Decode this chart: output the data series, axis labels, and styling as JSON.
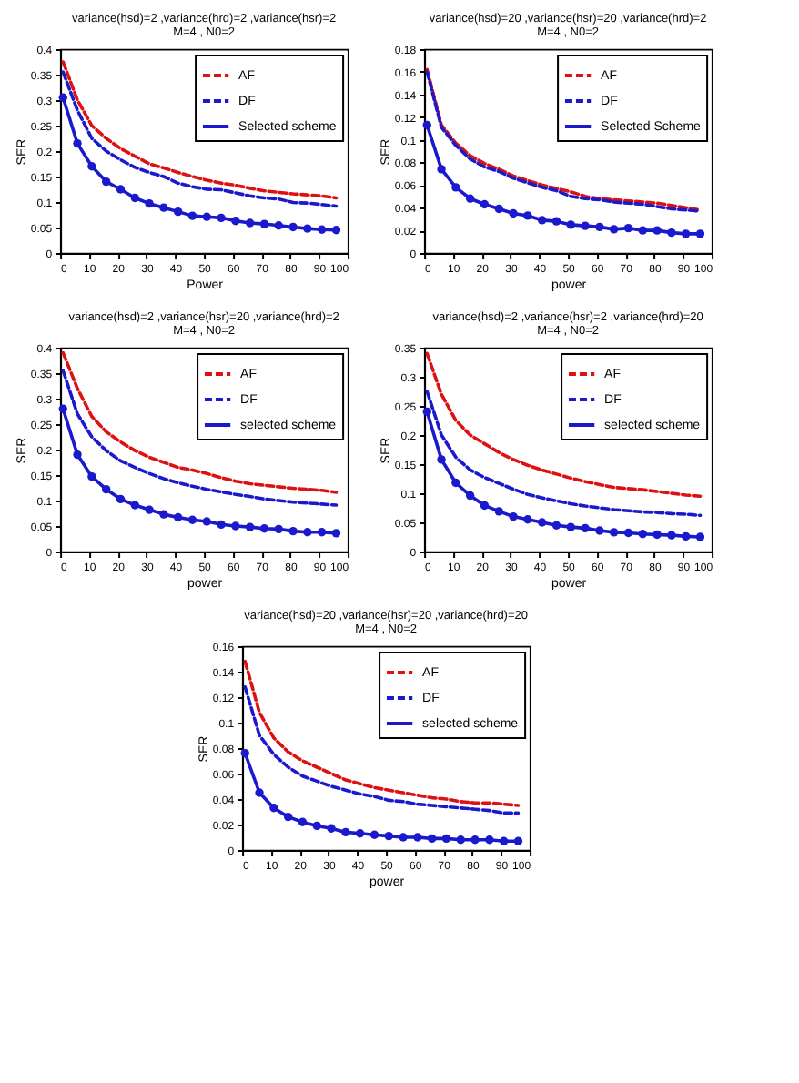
{
  "chart_data": [
    {
      "type": "line",
      "title": "variance(hsd)=2 ,variance(hrd)=2 ,variance(hsr)=2",
      "subtitle": "M=4 , N0=2",
      "xlabel": "Power",
      "ylabel": "SER",
      "x": [
        1,
        6,
        11,
        16,
        21,
        26,
        31,
        36,
        41,
        46,
        51,
        56,
        61,
        66,
        71,
        76,
        81,
        86,
        91,
        96
      ],
      "xlim": [
        0,
        100
      ],
      "xticks": [
        0,
        10,
        20,
        30,
        40,
        50,
        60,
        70,
        80,
        90,
        100
      ],
      "ylim": [
        0,
        0.4
      ],
      "yticks": [
        0,
        0.05,
        0.1,
        0.15,
        0.2,
        0.25,
        0.3,
        0.35,
        0.4
      ],
      "legend": "top right",
      "series": [
        {
          "name": "AF",
          "color": "#dd1111",
          "line_style": "dashed",
          "marker": "none",
          "values": [
            0.375,
            0.3,
            0.25,
            0.225,
            0.205,
            0.19,
            0.175,
            0.167,
            0.158,
            0.15,
            0.143,
            0.137,
            0.133,
            0.127,
            0.122,
            0.119,
            0.116,
            0.114,
            0.112,
            0.108
          ]
        },
        {
          "name": "DF",
          "color": "#1a1acc",
          "line_style": "dashed",
          "marker": "none",
          "values": [
            0.355,
            0.28,
            0.225,
            0.2,
            0.183,
            0.168,
            0.158,
            0.15,
            0.137,
            0.13,
            0.125,
            0.124,
            0.118,
            0.112,
            0.108,
            0.106,
            0.099,
            0.098,
            0.095,
            0.092
          ]
        },
        {
          "name": "Selected scheme",
          "color": "#1a1acc",
          "line_style": "solid",
          "marker": "circle",
          "values": [
            0.305,
            0.215,
            0.17,
            0.14,
            0.125,
            0.108,
            0.097,
            0.089,
            0.081,
            0.073,
            0.071,
            0.069,
            0.063,
            0.059,
            0.057,
            0.054,
            0.051,
            0.048,
            0.046,
            0.045
          ]
        }
      ]
    },
    {
      "type": "line",
      "title": "variance(hsd)=20 ,variance(hsr)=20 ,variance(hrd)=2",
      "subtitle": "M=4 , N0=2",
      "xlabel": "power",
      "ylabel": "SER",
      "x": [
        1,
        6,
        11,
        16,
        21,
        26,
        31,
        36,
        41,
        46,
        51,
        56,
        61,
        66,
        71,
        76,
        81,
        86,
        91,
        96
      ],
      "xlim": [
        0,
        100
      ],
      "xticks": [
        0,
        10,
        20,
        30,
        40,
        50,
        60,
        70,
        80,
        90,
        100
      ],
      "ylim": [
        0,
        0.18
      ],
      "yticks": [
        0,
        0.02,
        0.04,
        0.06,
        0.08,
        0.1,
        0.12,
        0.14,
        0.16,
        0.18
      ],
      "legend": "top right",
      "series": [
        {
          "name": "AF",
          "color": "#dd1111",
          "line_style": "dashed",
          "marker": "none",
          "values": [
            0.162,
            0.113,
            0.097,
            0.086,
            0.079,
            0.074,
            0.068,
            0.064,
            0.06,
            0.057,
            0.054,
            0.05,
            0.048,
            0.047,
            0.046,
            0.045,
            0.044,
            0.042,
            0.04,
            0.038
          ]
        },
        {
          "name": "DF",
          "color": "#1a1acc",
          "line_style": "dashed",
          "marker": "none",
          "values": [
            0.16,
            0.111,
            0.095,
            0.083,
            0.076,
            0.072,
            0.066,
            0.062,
            0.058,
            0.055,
            0.05,
            0.048,
            0.047,
            0.045,
            0.044,
            0.043,
            0.041,
            0.039,
            0.038,
            0.037
          ]
        },
        {
          "name": "Selected Scheme",
          "color": "#1a1acc",
          "line_style": "solid",
          "marker": "circle",
          "values": [
            0.113,
            0.074,
            0.058,
            0.048,
            0.043,
            0.039,
            0.035,
            0.033,
            0.029,
            0.028,
            0.025,
            0.024,
            0.023,
            0.021,
            0.022,
            0.02,
            0.02,
            0.018,
            0.017,
            0.017
          ]
        }
      ]
    },
    {
      "type": "line",
      "title": "variance(hsd)=2 ,variance(hsr)=20 ,variance(hrd)=2",
      "subtitle": "M=4 , N0=2",
      "xlabel": "power",
      "ylabel": "SER",
      "x": [
        1,
        6,
        11,
        16,
        21,
        26,
        31,
        36,
        41,
        46,
        51,
        56,
        61,
        66,
        71,
        76,
        81,
        86,
        91,
        96
      ],
      "xlim": [
        0,
        100
      ],
      "xticks": [
        0,
        10,
        20,
        30,
        40,
        50,
        60,
        70,
        80,
        90,
        100
      ],
      "ylim": [
        0,
        0.4
      ],
      "yticks": [
        0,
        0.05,
        0.1,
        0.15,
        0.2,
        0.25,
        0.3,
        0.35,
        0.4
      ],
      "legend": "top right",
      "series": [
        {
          "name": "AF",
          "color": "#dd1111",
          "line_style": "dashed",
          "marker": "none",
          "values": [
            0.39,
            0.32,
            0.265,
            0.235,
            0.215,
            0.198,
            0.185,
            0.175,
            0.165,
            0.16,
            0.153,
            0.145,
            0.138,
            0.133,
            0.13,
            0.127,
            0.124,
            0.122,
            0.12,
            0.116
          ]
        },
        {
          "name": "DF",
          "color": "#1a1acc",
          "line_style": "dashed",
          "marker": "none",
          "values": [
            0.355,
            0.27,
            0.225,
            0.198,
            0.178,
            0.165,
            0.153,
            0.143,
            0.135,
            0.128,
            0.122,
            0.117,
            0.112,
            0.108,
            0.103,
            0.1,
            0.097,
            0.095,
            0.093,
            0.091
          ]
        },
        {
          "name": "selected scheme",
          "color": "#1a1acc",
          "line_style": "solid",
          "marker": "circle",
          "values": [
            0.28,
            0.19,
            0.147,
            0.122,
            0.103,
            0.091,
            0.082,
            0.073,
            0.067,
            0.062,
            0.059,
            0.053,
            0.05,
            0.048,
            0.045,
            0.044,
            0.04,
            0.038,
            0.038,
            0.036
          ]
        }
      ]
    },
    {
      "type": "line",
      "title": "variance(hsd)=2 ,variance(hsr)=2 ,variance(hrd)=20",
      "subtitle": "M=4 , N0=2",
      "xlabel": "power",
      "ylabel": "SER",
      "x": [
        1,
        6,
        11,
        16,
        21,
        26,
        31,
        36,
        41,
        46,
        51,
        56,
        61,
        66,
        71,
        76,
        81,
        86,
        91,
        96
      ],
      "xlim": [
        0,
        100
      ],
      "xticks": [
        0,
        10,
        20,
        30,
        40,
        50,
        60,
        70,
        80,
        90,
        100
      ],
      "ylim": [
        0,
        0.35
      ],
      "yticks": [
        0,
        0.05,
        0.1,
        0.15,
        0.2,
        0.25,
        0.3,
        0.35
      ],
      "legend": "top right",
      "series": [
        {
          "name": "AF",
          "color": "#dd1111",
          "line_style": "dashed",
          "marker": "none",
          "values": [
            0.34,
            0.27,
            0.225,
            0.2,
            0.185,
            0.17,
            0.158,
            0.148,
            0.14,
            0.133,
            0.126,
            0.12,
            0.115,
            0.11,
            0.108,
            0.106,
            0.103,
            0.1,
            0.097,
            0.095
          ]
        },
        {
          "name": "DF",
          "color": "#1a1acc",
          "line_style": "dashed",
          "marker": "none",
          "values": [
            0.275,
            0.2,
            0.162,
            0.14,
            0.127,
            0.117,
            0.107,
            0.098,
            0.092,
            0.087,
            0.082,
            0.078,
            0.075,
            0.072,
            0.07,
            0.068,
            0.067,
            0.065,
            0.064,
            0.062
          ]
        },
        {
          "name": "selected scheme",
          "color": "#1a1acc",
          "line_style": "solid",
          "marker": "circle",
          "values": [
            0.24,
            0.158,
            0.118,
            0.096,
            0.079,
            0.069,
            0.06,
            0.055,
            0.05,
            0.045,
            0.042,
            0.04,
            0.036,
            0.033,
            0.032,
            0.03,
            0.029,
            0.028,
            0.026,
            0.025
          ]
        }
      ]
    },
    {
      "type": "line",
      "title": "variance(hsd)=20 ,variance(hsr)=20 ,variance(hrd)=20",
      "subtitle": "M=4 , N0=2",
      "xlabel": "power",
      "ylabel": "SER",
      "x": [
        1,
        6,
        11,
        16,
        21,
        26,
        31,
        36,
        41,
        46,
        51,
        56,
        61,
        66,
        71,
        76,
        81,
        86,
        91,
        96
      ],
      "xlim": [
        0,
        100
      ],
      "xticks": [
        0,
        10,
        20,
        30,
        40,
        50,
        60,
        70,
        80,
        90,
        100
      ],
      "ylim": [
        0,
        0.16
      ],
      "yticks": [
        0,
        0.02,
        0.04,
        0.06,
        0.08,
        0.1,
        0.12,
        0.14,
        0.16
      ],
      "legend": "top right",
      "series": [
        {
          "name": "AF",
          "color": "#dd1111",
          "line_style": "dashed",
          "marker": "none",
          "values": [
            0.148,
            0.108,
            0.088,
            0.077,
            0.07,
            0.065,
            0.06,
            0.055,
            0.052,
            0.049,
            0.047,
            0.045,
            0.043,
            0.041,
            0.04,
            0.038,
            0.037,
            0.037,
            0.036,
            0.035
          ]
        },
        {
          "name": "DF",
          "color": "#1a1acc",
          "line_style": "dashed",
          "marker": "none",
          "values": [
            0.128,
            0.09,
            0.075,
            0.065,
            0.058,
            0.054,
            0.05,
            0.047,
            0.044,
            0.042,
            0.039,
            0.038,
            0.036,
            0.035,
            0.034,
            0.033,
            0.032,
            0.031,
            0.029,
            0.029
          ]
        },
        {
          "name": "selected scheme",
          "color": "#1a1acc",
          "line_style": "solid",
          "marker": "circle",
          "values": [
            0.076,
            0.045,
            0.033,
            0.026,
            0.022,
            0.019,
            0.017,
            0.014,
            0.013,
            0.012,
            0.011,
            0.01,
            0.01,
            0.009,
            0.009,
            0.008,
            0.008,
            0.008,
            0.007,
            0.007
          ]
        }
      ]
    }
  ]
}
